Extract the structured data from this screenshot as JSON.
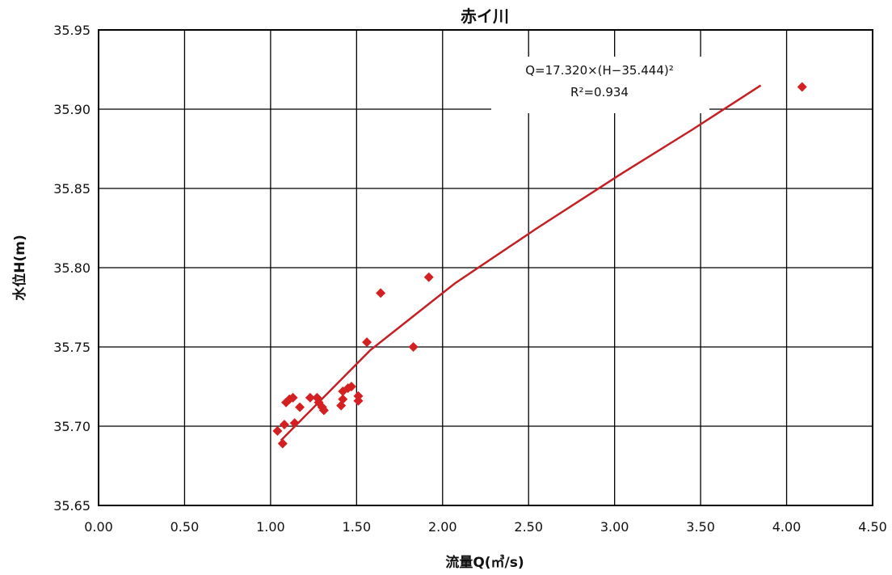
{
  "chart_data": {
    "type": "scatter",
    "title": "赤イ川",
    "xlabel": "流量Q(㎥/s)",
    "ylabel": "水位H(m)",
    "xlim": [
      0.0,
      4.5
    ],
    "ylim": [
      35.65,
      35.95
    ],
    "xticks": [
      "0.00",
      "0.50",
      "1.00",
      "1.50",
      "2.00",
      "2.50",
      "3.00",
      "3.50",
      "4.00",
      "4.50"
    ],
    "yticks": [
      "35.65",
      "35.70",
      "35.75",
      "35.80",
      "35.85",
      "35.90",
      "35.95"
    ],
    "grid": true,
    "colors": {
      "points": "#d42020",
      "trend": "#c42024"
    },
    "series": [
      {
        "type": "scatter",
        "points": [
          {
            "x": 1.04,
            "y": 35.697
          },
          {
            "x": 1.07,
            "y": 35.689
          },
          {
            "x": 1.08,
            "y": 35.701
          },
          {
            "x": 1.09,
            "y": 35.715
          },
          {
            "x": 1.11,
            "y": 35.717
          },
          {
            "x": 1.13,
            "y": 35.718
          },
          {
            "x": 1.14,
            "y": 35.702
          },
          {
            "x": 1.17,
            "y": 35.712
          },
          {
            "x": 1.23,
            "y": 35.718
          },
          {
            "x": 1.27,
            "y": 35.718
          },
          {
            "x": 1.28,
            "y": 35.715
          },
          {
            "x": 1.3,
            "y": 35.712
          },
          {
            "x": 1.31,
            "y": 35.71
          },
          {
            "x": 1.41,
            "y": 35.713
          },
          {
            "x": 1.42,
            "y": 35.717
          },
          {
            "x": 1.42,
            "y": 35.722
          },
          {
            "x": 1.45,
            "y": 35.724
          },
          {
            "x": 1.47,
            "y": 35.725
          },
          {
            "x": 1.51,
            "y": 35.716
          },
          {
            "x": 1.51,
            "y": 35.719
          },
          {
            "x": 1.56,
            "y": 35.753
          },
          {
            "x": 1.64,
            "y": 35.784
          },
          {
            "x": 1.83,
            "y": 35.75
          },
          {
            "x": 1.92,
            "y": 35.794
          },
          {
            "x": 4.09,
            "y": 35.914
          }
        ]
      },
      {
        "type": "line",
        "points": [
          {
            "x": 1.06,
            "y": 35.691
          },
          {
            "x": 1.58,
            "y": 35.748
          },
          {
            "x": 2.07,
            "y": 35.79
          },
          {
            "x": 2.55,
            "y": 35.825
          },
          {
            "x": 3.05,
            "y": 35.86
          },
          {
            "x": 3.45,
            "y": 35.887
          },
          {
            "x": 3.85,
            "y": 35.915
          }
        ]
      }
    ],
    "annotations": {
      "equation": "Q=17.320×(H−35.444)²",
      "r2": "R²=0.934"
    }
  }
}
